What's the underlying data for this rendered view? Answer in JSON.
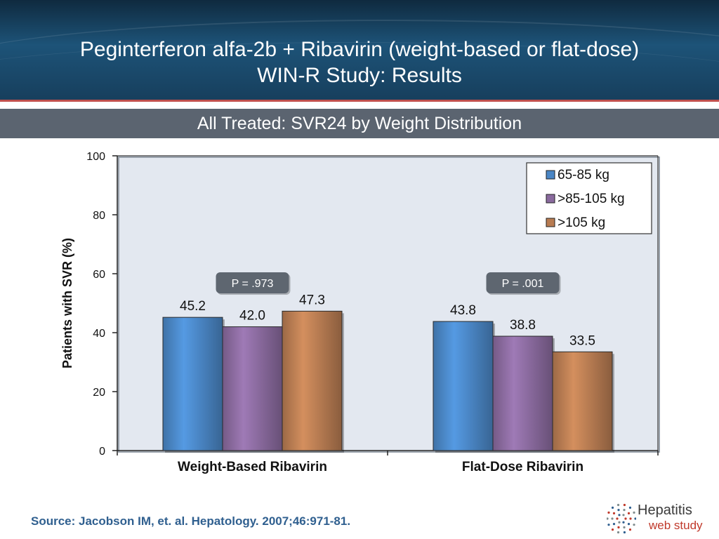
{
  "header": {
    "title_line1": "Peginterferon alfa-2b + Ribavirin (weight-based or flat-dose)",
    "title_line2": "WIN-R Study: Results"
  },
  "subtitle": "All Treated: SVR24 by Weight Distribution",
  "source": "Source: Jacobson IM, et. al. Hepatology. 2007;46:971-81.",
  "logo": {
    "line1": "Hepatitis",
    "line2": "web study"
  },
  "colors": {
    "header_dark": "#0f2a3f",
    "accent_red": "#c0504d",
    "subtitle_band": "#5b6470",
    "plot_bg": "#e3e8f0",
    "source_text": "#2f5f8f"
  },
  "chart_data": {
    "type": "bar",
    "categories": [
      "Weight-Based Ribavirin",
      "Flat-Dose Ribavirin"
    ],
    "series": [
      {
        "name": "65-85 kg",
        "values": [
          45.2,
          43.8
        ],
        "labels": [
          "45.2",
          "43.8"
        ],
        "color": "#4a86c5"
      },
      {
        "name": ">85-105 kg",
        "values": [
          42.0,
          38.8
        ],
        "labels": [
          "42.0",
          "38.8"
        ],
        "color": "#8a6a9e"
      },
      {
        "name": ">105 kg",
        "values": [
          47.3,
          33.5
        ],
        "labels": [
          "47.3",
          "33.5"
        ],
        "color": "#b87c52"
      }
    ],
    "ylabel": "Patients with SVR (%)",
    "xlabel": "",
    "ylim": [
      0,
      100
    ],
    "yticks": [
      0,
      20,
      40,
      60,
      80,
      100
    ],
    "grid": false,
    "legend_position": "top-right",
    "annotations": [
      "P = .973",
      "P = .001"
    ]
  }
}
